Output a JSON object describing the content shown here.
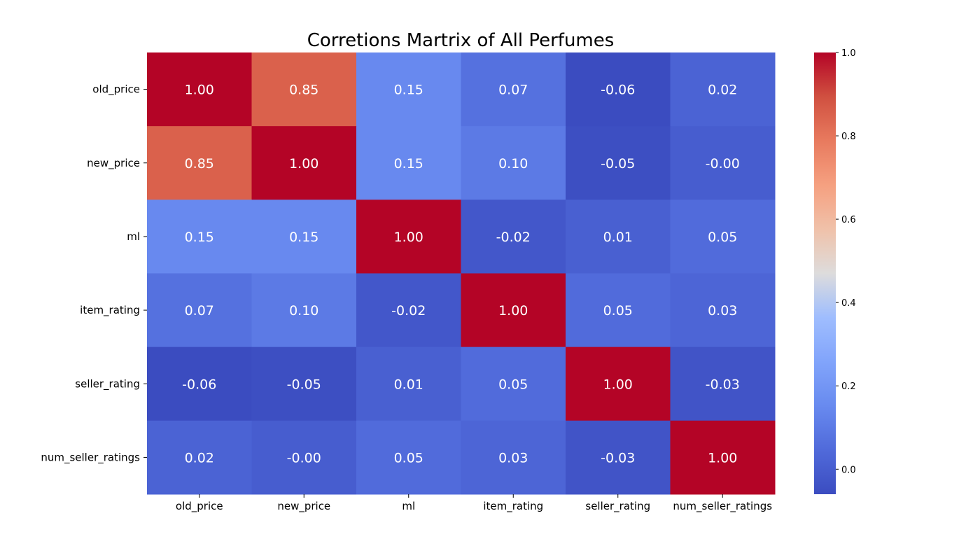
{
  "chart_data": {
    "type": "heatmap",
    "title": "Corretions Martrix of All Perfumes",
    "rows": [
      "old_price",
      "new_price",
      "ml",
      "item_rating",
      "seller_rating",
      "num_seller_ratings"
    ],
    "columns": [
      "old_price",
      "new_price",
      "ml",
      "item_rating",
      "seller_rating",
      "num_seller_ratings"
    ],
    "values": [
      [
        1.0,
        0.85,
        0.15,
        0.07,
        -0.06,
        0.02
      ],
      [
        0.85,
        1.0,
        0.15,
        0.1,
        -0.05,
        -0.0
      ],
      [
        0.15,
        0.15,
        1.0,
        -0.02,
        0.01,
        0.05
      ],
      [
        0.07,
        0.1,
        -0.02,
        1.0,
        0.05,
        0.03
      ],
      [
        -0.06,
        -0.05,
        0.01,
        0.05,
        1.0,
        -0.03
      ],
      [
        0.02,
        -0.0,
        0.05,
        0.03,
        -0.03,
        1.0
      ]
    ],
    "value_format": "0.00",
    "colormap": "coolwarm",
    "colorbar": {
      "range": [
        -0.06,
        1.0
      ],
      "ticks": [
        0.0,
        0.2,
        0.4,
        0.6,
        0.8,
        1.0
      ],
      "tick_labels": [
        "0.0",
        "0.2",
        "0.4",
        "0.6",
        "0.8",
        "1.0"
      ]
    },
    "colors": {
      "low": "#3b4cc0",
      "mid": "#dddddd",
      "high": "#b40426",
      "annotation_text": "#ffffff"
    }
  }
}
